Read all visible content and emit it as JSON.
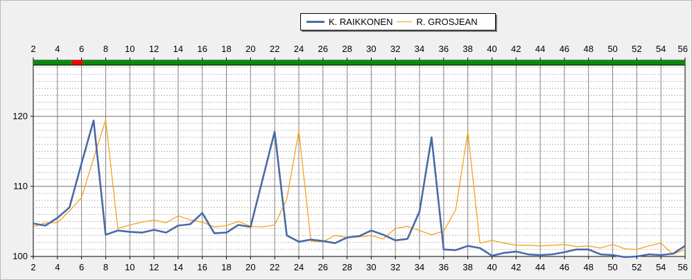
{
  "chart_data": {
    "type": "line",
    "title": "",
    "xlabel": "",
    "ylabel": "",
    "xlim": [
      2,
      56
    ],
    "ylim": [
      100,
      128
    ],
    "x_ticks": [
      2,
      4,
      6,
      8,
      10,
      12,
      14,
      16,
      18,
      20,
      22,
      24,
      26,
      28,
      30,
      32,
      34,
      36,
      38,
      40,
      42,
      44,
      46,
      48,
      50,
      52,
      54,
      56
    ],
    "y_ticks": [
      100,
      110,
      120
    ],
    "grid": true,
    "legend_position": "top-center",
    "status_bar": {
      "colors": {
        "green": "#0a8a0a",
        "red": "#ff0000"
      },
      "segments": [
        {
          "from": 2,
          "to": 5.2,
          "color": "green"
        },
        {
          "from": 5.2,
          "to": 6.1,
          "color": "red"
        },
        {
          "from": 6.1,
          "to": 56,
          "color": "green"
        }
      ]
    },
    "series": [
      {
        "name": "K. RAIKKONEN",
        "color": "#4a6aa5",
        "x": [
          2,
          3,
          4,
          5,
          6,
          7,
          8,
          9,
          10,
          11,
          12,
          13,
          14,
          15,
          16,
          17,
          18,
          19,
          20,
          21,
          22,
          23,
          24,
          25,
          26,
          27,
          28,
          29,
          30,
          31,
          32,
          33,
          34,
          35,
          36,
          37,
          38,
          39,
          40,
          41,
          42,
          43,
          44,
          45,
          46,
          47,
          48,
          49,
          50,
          51,
          52,
          53,
          54,
          55,
          56
        ],
        "values": [
          104.7,
          104.4,
          105.5,
          107.0,
          113.3,
          119.4,
          103.1,
          103.7,
          103.5,
          103.4,
          103.8,
          103.4,
          104.4,
          104.6,
          106.2,
          103.3,
          103.4,
          104.5,
          104.2,
          111.0,
          117.8,
          103.0,
          102.1,
          102.4,
          102.2,
          101.9,
          102.7,
          102.9,
          103.7,
          103.1,
          102.3,
          102.5,
          106.4,
          117.0,
          101.0,
          100.9,
          101.5,
          101.2,
          100.1,
          100.5,
          100.7,
          100.3,
          100.2,
          100.3,
          100.6,
          101.0,
          101.0,
          100.3,
          100.2,
          99.9,
          100.0,
          100.3,
          100.2,
          100.4,
          101.5
        ]
      },
      {
        "name": "R. GROSJEAN",
        "color": "#f5a11b",
        "x": [
          2,
          3,
          4,
          5,
          6,
          7,
          8,
          9,
          10,
          11,
          12,
          13,
          14,
          15,
          16,
          17,
          18,
          19,
          20,
          21,
          22,
          23,
          24,
          25,
          26,
          27,
          28,
          29,
          30,
          31,
          32,
          33,
          34,
          35,
          36,
          37,
          38,
          39,
          40,
          41,
          42,
          43,
          44,
          45,
          46,
          47,
          48,
          49,
          50,
          51,
          52,
          53,
          54,
          55,
          56
        ],
        "values": [
          104.2,
          104.8,
          104.8,
          106.5,
          108.4,
          114.0,
          119.5,
          104.0,
          104.5,
          104.9,
          105.2,
          104.8,
          105.8,
          105.2,
          104.9,
          104.2,
          104.4,
          105.0,
          104.3,
          104.2,
          104.5,
          108.2,
          117.9,
          102.2,
          102.1,
          103.0,
          102.7,
          102.8,
          103.0,
          102.5,
          104.0,
          104.3,
          103.7,
          103.1,
          103.6,
          106.7,
          117.8,
          101.9,
          102.3,
          101.9,
          101.6,
          101.6,
          101.5,
          101.6,
          101.7,
          101.4,
          101.5,
          101.2,
          101.7,
          101.1,
          101.0,
          101.5,
          101.9,
          100.3,
          101.0
        ]
      }
    ]
  }
}
